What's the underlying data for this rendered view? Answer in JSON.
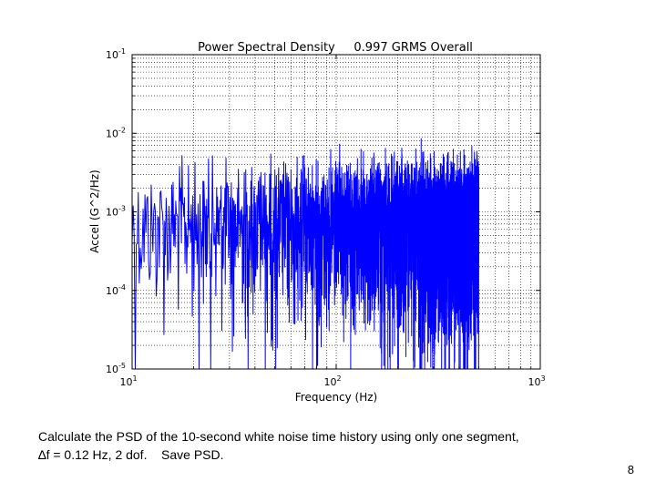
{
  "chart_data": {
    "type": "line",
    "title": "Power Spectral Density     0.997 GRMS Overall",
    "xlabel": "Frequency (Hz)",
    "ylabel": "Accel (G^2/Hz)",
    "xscale": "log",
    "yscale": "log",
    "xlim": [
      10,
      1000
    ],
    "ylim": [
      1e-05,
      0.1
    ],
    "x_ticks": [
      {
        "value": 10,
        "base": "10",
        "exp": "1"
      },
      {
        "value": 100,
        "base": "10",
        "exp": "2"
      },
      {
        "value": 1000,
        "base": "10",
        "exp": "3"
      }
    ],
    "y_ticks": [
      {
        "value": 0.1,
        "base": "10",
        "exp": "-1"
      },
      {
        "value": 0.01,
        "base": "10",
        "exp": "-2"
      },
      {
        "value": 0.001,
        "base": "10",
        "exp": "-3"
      },
      {
        "value": 0.0001,
        "base": "10",
        "exp": "-4"
      },
      {
        "value": 1e-05,
        "base": "10",
        "exp": "-5"
      }
    ],
    "grid": true,
    "series": [
      {
        "name": "PSD",
        "color": "#0000ff",
        "x_start": 10,
        "x_end": 500,
        "df": 0.12,
        "approx_level": 0.002
      }
    ]
  },
  "caption": {
    "line1": "Calculate the PSD of the 10-second white noise time history using only one segment,",
    "line2": "∆f = 0.12 Hz, 2 dof.    Save PSD."
  },
  "page_number": "8"
}
